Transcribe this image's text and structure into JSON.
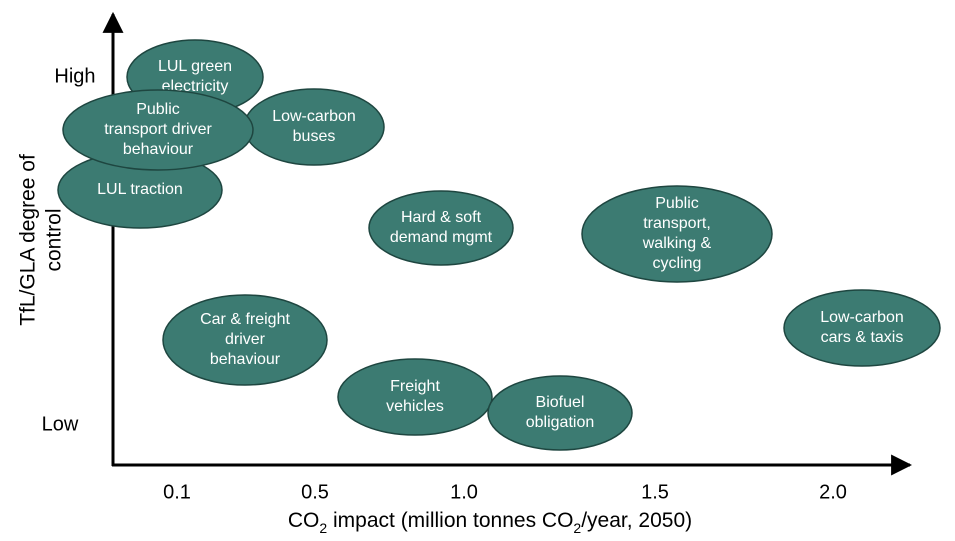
{
  "y_axis": {
    "label_lines": [
      "TfL/GLA degree of",
      "control"
    ],
    "ticks": [
      "High",
      "Low"
    ]
  },
  "x_axis": {
    "label_parts": [
      "CO",
      "2",
      " impact (million tonnes CO",
      "2",
      "/year, 2050)"
    ],
    "ticks": [
      "0.1",
      "0.5",
      "1.0",
      "1.5",
      "2.0"
    ]
  },
  "nodes": [
    {
      "label": [
        "LUL green",
        "electricity"
      ]
    },
    {
      "label": [
        "Low-carbon",
        "buses"
      ]
    },
    {
      "label": [
        "LUL traction"
      ]
    },
    {
      "label": [
        "Public",
        "transport driver",
        "behaviour"
      ]
    },
    {
      "label": [
        "Hard & soft",
        "demand mgmt"
      ]
    },
    {
      "label": [
        "Public",
        "transport,",
        "walking &",
        "cycling"
      ]
    },
    {
      "label": [
        "Low-carbon",
        "cars & taxis"
      ]
    },
    {
      "label": [
        "Car & freight",
        "driver",
        "behaviour"
      ]
    },
    {
      "label": [
        "Freight",
        "vehicles"
      ]
    },
    {
      "label": [
        "Biofuel",
        "obligation"
      ]
    }
  ]
}
